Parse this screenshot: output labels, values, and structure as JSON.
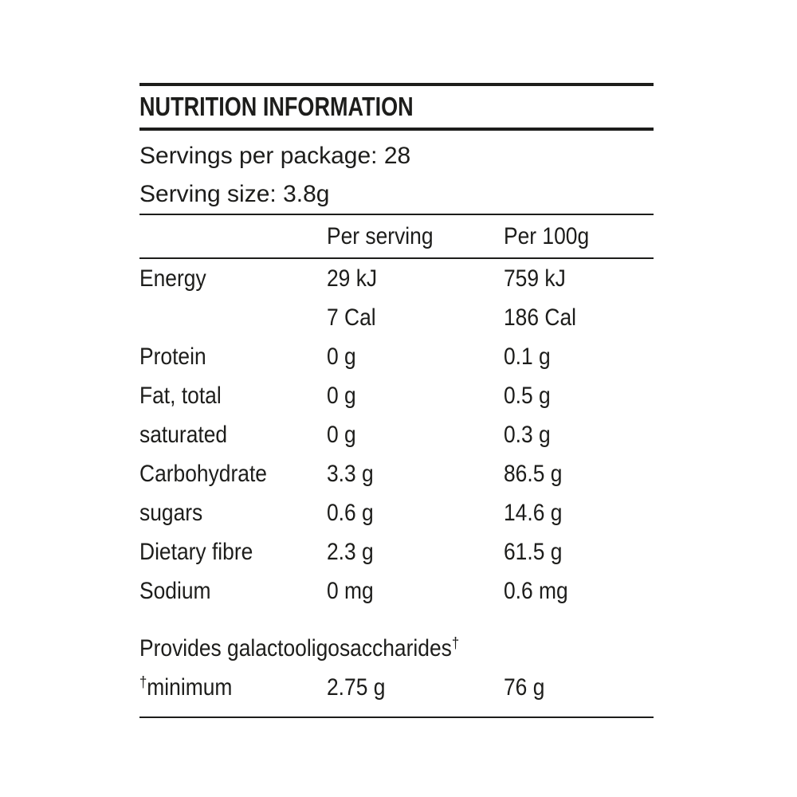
{
  "title": "NUTRITION INFORMATION",
  "serving_info": {
    "servings_per_package": "Servings per package: 28",
    "serving_size": "Serving size: 3.8g"
  },
  "table": {
    "columns": [
      "",
      "Per serving",
      "Per 100g"
    ],
    "rows": [
      {
        "label": "Energy",
        "per_serving": "29 kJ",
        "per_100g": "759 kJ"
      },
      {
        "label": "",
        "per_serving": "7 Cal",
        "per_100g": "186 Cal"
      },
      {
        "label": "Protein",
        "per_serving": "0 g",
        "per_100g": "0.1 g"
      },
      {
        "label": "Fat, total",
        "per_serving": "0 g",
        "per_100g": "0.5 g"
      },
      {
        "label": "saturated",
        "per_serving": "0 g",
        "per_100g": "0.3 g"
      },
      {
        "label": "Carbohydrate",
        "per_serving": "3.3 g",
        "per_100g": "86.5 g"
      },
      {
        "label": "sugars",
        "per_serving": "0.6 g",
        "per_100g": "14.6 g"
      },
      {
        "label": "Dietary fibre",
        "per_serving": "2.3 g",
        "per_100g": "61.5 g"
      },
      {
        "label": "Sodium",
        "per_serving": "0 mg",
        "per_100g": "0.6 mg"
      }
    ]
  },
  "footnote": {
    "provides_text": "Provides galactooligosaccharides",
    "dagger": "†",
    "minimum_label": "minimum",
    "per_serving": "2.75 g",
    "per_100g": "76 g"
  },
  "colors": {
    "text": "#1d1d1b",
    "rule": "#1d1d1b",
    "background": "#ffffff"
  }
}
